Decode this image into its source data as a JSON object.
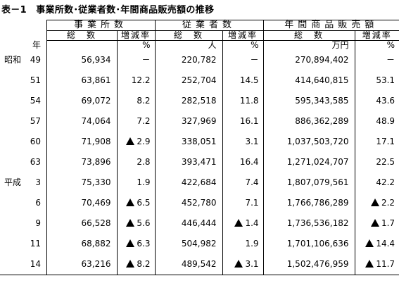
{
  "title": "表－1　事業所数･従業者数･年間商品販売額の推移",
  "header": {
    "groups": [
      "事業所数",
      "従業者数",
      "年間商品販売額"
    ],
    "sub": [
      "総　数",
      "増減率",
      "総　数",
      "増減率",
      "総　数",
      "増減率"
    ],
    "units": {
      "year": "年",
      "est_rate": "%",
      "emp_total": "人",
      "emp_rate": "%",
      "sales_total": "万円",
      "sales_rate": "%"
    }
  },
  "rows": [
    {
      "era": "昭和",
      "year": "49",
      "est_total": "56,934",
      "est_rate": "－",
      "est_neg": false,
      "emp_total": "220,782",
      "emp_rate": "－",
      "emp_neg": false,
      "sales_total": "270,894,402",
      "sales_rate": "－",
      "sales_neg": false
    },
    {
      "era": "",
      "year": "51",
      "est_total": "63,861",
      "est_rate": "12.2",
      "est_neg": false,
      "emp_total": "252,704",
      "emp_rate": "14.5",
      "emp_neg": false,
      "sales_total": "414,640,815",
      "sales_rate": "53.1",
      "sales_neg": false
    },
    {
      "era": "",
      "year": "54",
      "est_total": "69,072",
      "est_rate": "8.2",
      "est_neg": false,
      "emp_total": "282,518",
      "emp_rate": "11.8",
      "emp_neg": false,
      "sales_total": "595,343,585",
      "sales_rate": "43.6",
      "sales_neg": false
    },
    {
      "era": "",
      "year": "57",
      "est_total": "74,064",
      "est_rate": "7.2",
      "est_neg": false,
      "emp_total": "327,969",
      "emp_rate": "16.1",
      "emp_neg": false,
      "sales_total": "886,362,289",
      "sales_rate": "48.9",
      "sales_neg": false
    },
    {
      "era": "",
      "year": "60",
      "est_total": "71,908",
      "est_rate": "2.9",
      "est_neg": true,
      "emp_total": "338,051",
      "emp_rate": "3.1",
      "emp_neg": false,
      "sales_total": "1,037,503,720",
      "sales_rate": "17.1",
      "sales_neg": false
    },
    {
      "era": "",
      "year": "63",
      "est_total": "73,896",
      "est_rate": "2.8",
      "est_neg": false,
      "emp_total": "393,471",
      "emp_rate": "16.4",
      "emp_neg": false,
      "sales_total": "1,271,024,707",
      "sales_rate": "22.5",
      "sales_neg": false
    },
    {
      "era": "平成",
      "year": "3",
      "est_total": "75,330",
      "est_rate": "1.9",
      "est_neg": false,
      "emp_total": "422,684",
      "emp_rate": "7.4",
      "emp_neg": false,
      "sales_total": "1,807,079,561",
      "sales_rate": "42.2",
      "sales_neg": false
    },
    {
      "era": "",
      "year": "6",
      "est_total": "70,469",
      "est_rate": "6.5",
      "est_neg": true,
      "emp_total": "452,780",
      "emp_rate": "7.1",
      "emp_neg": false,
      "sales_total": "1,766,786,289",
      "sales_rate": "2.2",
      "sales_neg": true
    },
    {
      "era": "",
      "year": "9",
      "est_total": "66,528",
      "est_rate": "5.6",
      "est_neg": true,
      "emp_total": "446,444",
      "emp_rate": "1.4",
      "emp_neg": true,
      "sales_total": "1,736,536,182",
      "sales_rate": "1.7",
      "sales_neg": true
    },
    {
      "era": "",
      "year": "11",
      "est_total": "68,882",
      "est_rate": "6.3",
      "est_neg": true,
      "emp_total": "504,982",
      "emp_rate": "1.9",
      "emp_neg": false,
      "sales_total": "1,701,106,636",
      "sales_rate": "14.4",
      "sales_neg": true
    },
    {
      "era": "",
      "year": "14",
      "est_total": "63,216",
      "est_rate": "8.2",
      "est_neg": true,
      "emp_total": "489,542",
      "emp_rate": "3.1",
      "emp_neg": true,
      "sales_total": "1,502,476,959",
      "sales_rate": "11.7",
      "sales_neg": true
    }
  ]
}
